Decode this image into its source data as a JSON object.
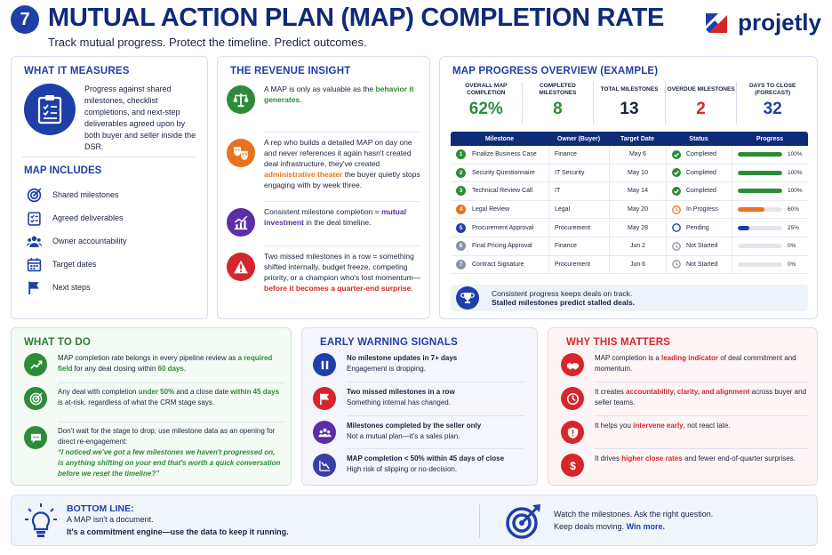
{
  "header": {
    "number": "7",
    "title": "MUTUAL ACTION PLAN (MAP) COMPLETION RATE",
    "subtitle": "Track mutual progress. Protect the timeline. Predict outcomes.",
    "brand": "projetly"
  },
  "measures": {
    "title": "WHAT IT MEASURES",
    "description": "Progress against shared milestones, checklist completions, and next-step deliverables agreed upon by both buyer and seller inside the DSR.",
    "includes_title": "MAP INCLUDES",
    "includes": [
      {
        "icon": "target-icon",
        "label": "Shared milestones"
      },
      {
        "icon": "checklist-icon",
        "label": "Agreed deliverables"
      },
      {
        "icon": "people-icon",
        "label": "Owner accountability"
      },
      {
        "icon": "calendar-icon",
        "label": "Target dates"
      },
      {
        "icon": "flag-icon",
        "label": "Next steps"
      }
    ]
  },
  "revenue": {
    "title": "THE REVENUE INSIGHT",
    "items": [
      {
        "color": "#2e8b3a",
        "icon": "scales-icon",
        "pre": "A MAP is only as valuable as the ",
        "hl": "behavior it generates",
        "post": ".",
        "hl_class": "hl-green"
      },
      {
        "color": "#e8731c",
        "icon": "theater-masks-icon",
        "pre": "A rep who builds a detailed MAP on day one and never references it again hasn't created deal infrastructure, they've created ",
        "hl": "administrative theater",
        "post": " the buyer quietly stops engaging with by week three.",
        "hl_class": "hl-orange"
      },
      {
        "color": "#5a2ea6",
        "icon": "growth-chart-icon",
        "pre": "Consistent milestone completion = ",
        "hl": "mutual investment",
        "post": " in the deal timeline.",
        "hl_class": "hl-purple"
      },
      {
        "color": "#d6262b",
        "icon": "warning-icon",
        "pre": "Two missed milestones in a row = something shifted internally, budget freeze, competing priority, or a champion who's lost momentum—",
        "hl": "before it becomes a quarter-end surprise",
        "post": ".",
        "hl_class": "hl-red"
      }
    ]
  },
  "map": {
    "title": "MAP PROGRESS OVERVIEW (EXAMPLE)",
    "kpis": [
      {
        "label": "OVERALL MAP COMPLETION",
        "value": "62%",
        "color": "#2e8b3a"
      },
      {
        "label": "COMPLETED MILESTONES",
        "value": "8",
        "color": "#2e8b3a"
      },
      {
        "label": "TOTAL MILESTONES",
        "value": "13",
        "color": "#1a2340"
      },
      {
        "label": "OVERDUE MILESTONES",
        "value": "2",
        "color": "#d6262b"
      },
      {
        "label": "DAYS TO CLOSE (FORECAST)",
        "value": "32",
        "color": "#1f3fa8"
      }
    ],
    "columns": [
      "Milestone",
      "Owner (Buyer)",
      "Target Date",
      "Status",
      "Progress"
    ],
    "rows": [
      {
        "n": "1",
        "milestone": "Finalize Business Case",
        "owner": "Finance",
        "date": "May 6",
        "status": "Completed",
        "state": "done",
        "progress": 100,
        "pct": "100%"
      },
      {
        "n": "2",
        "milestone": "Security Questionnaire",
        "owner": "IT Security",
        "date": "May 10",
        "status": "Completed",
        "state": "done",
        "progress": 100,
        "pct": "100%"
      },
      {
        "n": "3",
        "milestone": "Technical Review Call",
        "owner": "IT",
        "date": "May 14",
        "status": "Completed",
        "state": "done",
        "progress": 100,
        "pct": "100%"
      },
      {
        "n": "4",
        "milestone": "Legal Review",
        "owner": "Legal",
        "date": "May 20",
        "status": "In Progress",
        "state": "progress",
        "progress": 60,
        "pct": "60%"
      },
      {
        "n": "5",
        "milestone": "Procurement Approval",
        "owner": "Procurement",
        "date": "May 28",
        "status": "Pending",
        "state": "pending",
        "progress": 25,
        "pct": "25%"
      },
      {
        "n": "6",
        "milestone": "Final Pricing Approval",
        "owner": "Finance",
        "date": "Jun 2",
        "status": "Not Started",
        "state": "none",
        "progress": 0,
        "pct": "0%"
      },
      {
        "n": "7",
        "milestone": "Contract Signature",
        "owner": "Procurement",
        "date": "Jun 6",
        "status": "Not Started",
        "state": "none",
        "progress": 0,
        "pct": "0%"
      }
    ],
    "footer_line1": "Consistent progress keeps deals on track.",
    "footer_line2": "Stalled milestones predict stalled deals."
  },
  "todo": {
    "title": "WHAT TO DO",
    "items": [
      {
        "icon": "line-chart-icon",
        "html": "MAP completion rate belongs in every pipeline review as <span class='hl-green'>a required field</span> for any deal closing within <span class='hl-green'>60 days</span>."
      },
      {
        "icon": "target-icon",
        "html": "Any deal with completion <span class='hl-green'>under 50%</span> and a close date <span class='hl-green'>within 45 days</span> is at-risk, regardless of what the CRM stage says."
      },
      {
        "icon": "chat-icon",
        "html": "Don't wait for the stage to drop; use milestone data as an opening for direct re-engagement:<br><i class='hl-green'>“I noticed we've got a few milestones we haven't progressed on, is anything shifting on your end that's worth a quick conversation before we reset the timeline?”</i>"
      }
    ]
  },
  "warning": {
    "title": "EARLY WARNING SIGNALS",
    "items": [
      {
        "icon": "pause-icon",
        "color": "#1f3fa8",
        "bold": "No milestone updates in 7+ days",
        "text": "Engagement is dropping."
      },
      {
        "icon": "flag-icon",
        "color": "#d6262b",
        "bold": "Two missed milestones in a row",
        "text": "Something internal has changed."
      },
      {
        "icon": "group-icon",
        "color": "#5a2ea6",
        "bold": "Milestones completed by the seller only",
        "text": "Not a mutual plan—it's a sales plan."
      },
      {
        "icon": "decline-chart-icon",
        "color": "#3a3fa6",
        "bold": "MAP completion < 50% within 45 days of close",
        "text": "High risk of slipping or no-decision."
      }
    ]
  },
  "why": {
    "title": "WHY THIS MATTERS",
    "items": [
      {
        "icon": "handshake-icon",
        "html": "MAP completion is a <span class='hl-red'>leading indicator</span> of deal commitment and momentum."
      },
      {
        "icon": "clock-icon",
        "html": "It creates <span class='hl-red'>accountability, clarity, and alignment</span> across buyer and seller teams."
      },
      {
        "icon": "shield-icon",
        "html": "It helps you <span class='hl-red'>intervene early</span>, not react late."
      },
      {
        "icon": "dollar-icon",
        "html": "It drives <span class='hl-red'>higher close rates</span> and fewer end-of-quarter surprises."
      }
    ]
  },
  "bottom": {
    "heading": "BOTTOM LINE:",
    "line1": "A MAP isn't a document.",
    "line2": "It's a commitment engine—use the data to keep it running.",
    "right1": "Watch the milestones. Ask the right question.",
    "right2_pre": "Keep deals moving.",
    "right2_win": "Win more."
  },
  "colors": {
    "primary": "#1f3fa8",
    "navy": "#0f2a78",
    "green": "#2e8b3a",
    "orange": "#e8731c",
    "red": "#d6262b",
    "purple": "#5a2ea6"
  }
}
